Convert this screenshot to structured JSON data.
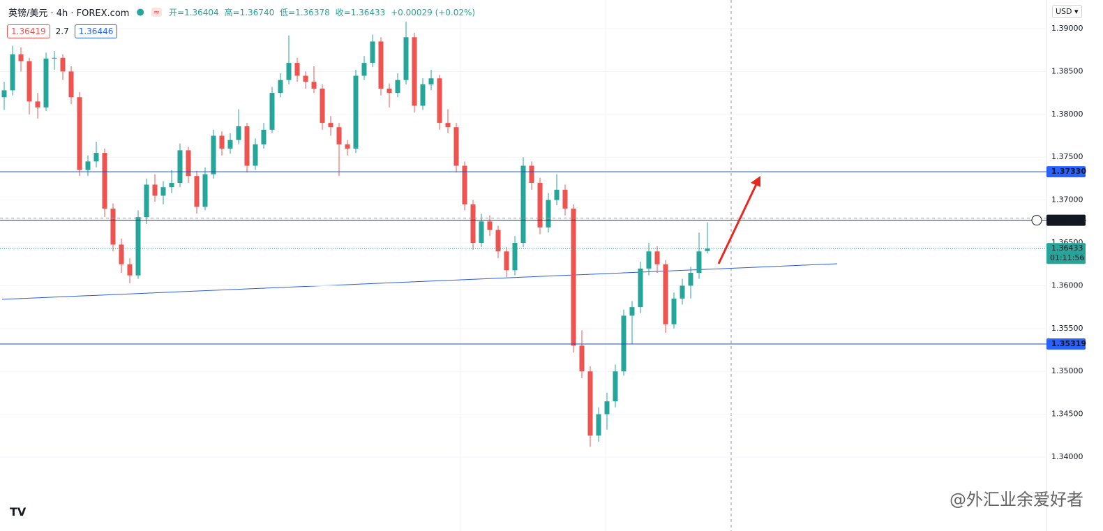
{
  "chart_data": {
    "type": "candlestick",
    "symbol": "英镑/美元 · 4h · FOREX.com",
    "ohlc_labels": [
      "开=1.36404",
      "高=1.36740",
      "低=1.36378",
      "收=1.36433",
      "+0.00029 (+0.02%)"
    ],
    "boxes": [
      "1.36419",
      "2.7",
      "1.36446"
    ],
    "currency": "USD",
    "watermark": "@外汇业余爱好者",
    "logo": "TV",
    "up_color": "#26a69a",
    "down_color": "#ef5350",
    "ylim": [
      1.33137,
      1.39334
    ],
    "yticks": [
      {
        "value": 1.39,
        "label": "1.39000"
      },
      {
        "value": 1.385,
        "label": "1.38500"
      },
      {
        "value": 1.38,
        "label": "1.38000"
      },
      {
        "value": 1.375,
        "label": "1.37500"
      },
      {
        "value": 1.37,
        "label": "1.37000"
      },
      {
        "value": 1.365,
        "label": "1.36500"
      },
      {
        "value": 1.36,
        "label": "1.36000"
      },
      {
        "value": 1.355,
        "label": "1.35500"
      },
      {
        "value": 1.35,
        "label": "1.35000"
      },
      {
        "value": 1.345,
        "label": "1.34500"
      },
      {
        "value": 1.34,
        "label": "1.34000"
      }
    ],
    "grid": true,
    "levels": [
      {
        "value": 1.3733,
        "label": "1.37330",
        "color": "#2962ff"
      },
      {
        "value": 1.36764,
        "label": "1.36764",
        "color": "#131722"
      },
      {
        "value": 1.35319,
        "label": "1.35319",
        "color": "#2962ff"
      }
    ],
    "last_price": {
      "value": 1.36433,
      "label": "1.36433",
      "countdown": "01:11:56",
      "color": "#26a69a"
    },
    "candles": [
      [
        1.382,
        1.3838,
        1.3805,
        1.3828
      ],
      [
        1.3828,
        1.388,
        1.3822,
        1.387
      ],
      [
        1.387,
        1.3878,
        1.385,
        1.3862
      ],
      [
        1.3862,
        1.3866,
        1.38,
        1.3815
      ],
      [
        1.3815,
        1.3825,
        1.3795,
        1.3808
      ],
      [
        1.3808,
        1.3872,
        1.3804,
        1.3865
      ],
      [
        1.3865,
        1.3874,
        1.3852,
        1.3866
      ],
      [
        1.3866,
        1.387,
        1.384,
        1.385
      ],
      [
        1.385,
        1.3856,
        1.3812,
        1.382
      ],
      [
        1.382,
        1.3826,
        1.3728,
        1.3735
      ],
      [
        1.3735,
        1.3752,
        1.3728,
        1.3745
      ],
      [
        1.3745,
        1.3768,
        1.3738,
        1.3755
      ],
      [
        1.3755,
        1.376,
        1.368,
        1.369
      ],
      [
        1.369,
        1.3696,
        1.364,
        1.3648
      ],
      [
        1.3648,
        1.3655,
        1.3615,
        1.3625
      ],
      [
        1.3625,
        1.3632,
        1.3603,
        1.3612
      ],
      [
        1.3612,
        1.3688,
        1.3608,
        1.368
      ],
      [
        1.368,
        1.3725,
        1.3672,
        1.3718
      ],
      [
        1.3718,
        1.373,
        1.3698,
        1.3705
      ],
      [
        1.3705,
        1.3722,
        1.3695,
        1.3715
      ],
      [
        1.3715,
        1.3735,
        1.3708,
        1.372
      ],
      [
        1.372,
        1.3766,
        1.3715,
        1.3758
      ],
      [
        1.3758,
        1.3762,
        1.372,
        1.3728
      ],
      [
        1.3728,
        1.3734,
        1.3684,
        1.3692
      ],
      [
        1.3692,
        1.3738,
        1.3688,
        1.373
      ],
      [
        1.373,
        1.3782,
        1.3725,
        1.3775
      ],
      [
        1.3775,
        1.378,
        1.3752,
        1.376
      ],
      [
        1.376,
        1.3778,
        1.3754,
        1.377
      ],
      [
        1.377,
        1.3806,
        1.3765,
        1.3786
      ],
      [
        1.3786,
        1.379,
        1.3732,
        1.374
      ],
      [
        1.374,
        1.3772,
        1.3735,
        1.3765
      ],
      [
        1.3765,
        1.379,
        1.376,
        1.3782
      ],
      [
        1.3782,
        1.3832,
        1.3778,
        1.3825
      ],
      [
        1.3825,
        1.3848,
        1.382,
        1.384
      ],
      [
        1.384,
        1.3892,
        1.3835,
        1.386
      ],
      [
        1.386,
        1.3866,
        1.3838,
        1.3845
      ],
      [
        1.3845,
        1.385,
        1.383,
        1.3838
      ],
      [
        1.3838,
        1.3856,
        1.3825,
        1.383
      ],
      [
        1.383,
        1.3835,
        1.3782,
        1.379
      ],
      [
        1.379,
        1.3798,
        1.3775,
        1.3785
      ],
      [
        1.3785,
        1.379,
        1.3728,
        1.3765
      ],
      [
        1.3765,
        1.377,
        1.3752,
        1.376
      ],
      [
        1.376,
        1.3852,
        1.3755,
        1.3845
      ],
      [
        1.3845,
        1.3868,
        1.384,
        1.386
      ],
      [
        1.386,
        1.3893,
        1.3855,
        1.3885
      ],
      [
        1.3885,
        1.389,
        1.3822,
        1.383
      ],
      [
        1.383,
        1.3836,
        1.3808,
        1.3825
      ],
      [
        1.3825,
        1.3848,
        1.382,
        1.384
      ],
      [
        1.384,
        1.3908,
        1.3835,
        1.389
      ],
      [
        1.389,
        1.3895,
        1.3802,
        1.381
      ],
      [
        1.381,
        1.3842,
        1.3805,
        1.3835
      ],
      [
        1.3835,
        1.3852,
        1.3828,
        1.3842
      ],
      [
        1.3842,
        1.3846,
        1.3782,
        1.379
      ],
      [
        1.379,
        1.3806,
        1.3778,
        1.3785
      ],
      [
        1.3785,
        1.379,
        1.3732,
        1.374
      ],
      [
        1.374,
        1.3745,
        1.3688,
        1.3695
      ],
      [
        1.3695,
        1.37,
        1.3642,
        1.365
      ],
      [
        1.365,
        1.3684,
        1.3645,
        1.3675
      ],
      [
        1.3675,
        1.3682,
        1.3658,
        1.3665
      ],
      [
        1.3665,
        1.367,
        1.3632,
        1.364
      ],
      [
        1.364,
        1.3645,
        1.361,
        1.3618
      ],
      [
        1.3618,
        1.3658,
        1.3612,
        1.365
      ],
      [
        1.365,
        1.375,
        1.3645,
        1.374
      ],
      [
        1.374,
        1.3745,
        1.3712,
        1.372
      ],
      [
        1.372,
        1.3726,
        1.366,
        1.3668
      ],
      [
        1.3668,
        1.3708,
        1.3662,
        1.37
      ],
      [
        1.37,
        1.373,
        1.3694,
        1.3712
      ],
      [
        1.3712,
        1.3718,
        1.3682,
        1.369
      ],
      [
        1.369,
        1.3695,
        1.3522,
        1.353
      ],
      [
        1.353,
        1.3548,
        1.3492,
        1.35
      ],
      [
        1.35,
        1.3506,
        1.3412,
        1.3425
      ],
      [
        1.3425,
        1.3458,
        1.3418,
        1.345
      ],
      [
        1.345,
        1.3475,
        1.3432,
        1.3465
      ],
      [
        1.3465,
        1.3508,
        1.3458,
        1.35
      ],
      [
        1.35,
        1.3572,
        1.3495,
        1.3565
      ],
      [
        1.3565,
        1.3582,
        1.3532,
        1.3575
      ],
      [
        1.3575,
        1.3628,
        1.3568,
        1.362
      ],
      [
        1.362,
        1.365,
        1.3612,
        1.364
      ],
      [
        1.364,
        1.3646,
        1.3615,
        1.3625
      ],
      [
        1.3625,
        1.363,
        1.3545,
        1.3555
      ],
      [
        1.3555,
        1.3592,
        1.355,
        1.3585
      ],
      [
        1.3585,
        1.3608,
        1.3578,
        1.36
      ],
      [
        1.36,
        1.3622,
        1.3585,
        1.3615
      ],
      [
        1.3615,
        1.3662,
        1.3608,
        1.364
      ],
      [
        1.36404,
        1.3674,
        1.36378,
        1.36433
      ]
    ]
  }
}
